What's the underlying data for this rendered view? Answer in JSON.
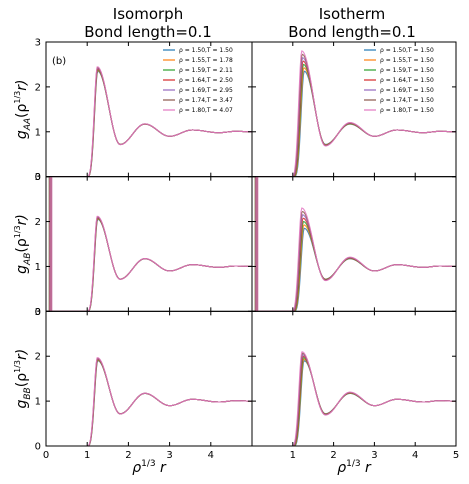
{
  "figure": {
    "column_titles": [
      {
        "line1": "Isomorph",
        "line2": "Bond length=0.1"
      },
      {
        "line1": "Isotherm",
        "line2": "Bond length=0.1"
      }
    ],
    "row_ylabels": [
      {
        "base": "g",
        "sub": "AA",
        "arg": "(ρ",
        "sup": "1/3",
        "tail": "r)"
      },
      {
        "base": "g",
        "sub": "AB",
        "arg": "(ρ",
        "sup": "1/3",
        "tail": "r)"
      },
      {
        "base": "g",
        "sub": "BB",
        "arg": "(ρ",
        "sup": "1/3",
        "tail": "r)"
      }
    ],
    "xlabel": {
      "base": "ρ",
      "sup": "1/3",
      "tail": " r"
    },
    "panel_tag": "(b)"
  },
  "chart_data": {
    "type": "line",
    "x_range": [
      0,
      5
    ],
    "y_range": [
      0,
      3
    ],
    "x_ticks_left": [
      "0",
      "1",
      "2",
      "3",
      "4"
    ],
    "x_ticks_right": [
      "1",
      "2",
      "3",
      "4",
      "5"
    ],
    "y_ticks": [
      "0",
      "1",
      "2",
      "3"
    ],
    "colors": [
      "#1f77b4",
      "#ff7f0e",
      "#2ca02c",
      "#d62728",
      "#9467bd",
      "#8c564b",
      "#e377c2"
    ],
    "legend_isomorph": [
      "ρ = 1.50,T = 1.50",
      "ρ = 1.55,T = 1.78",
      "ρ = 1.59,T = 2.11",
      "ρ = 1.64,T = 2.50",
      "ρ = 1.69,T = 2.95",
      "ρ = 1.74,T = 3.47",
      "ρ = 1.80,T = 4.07"
    ],
    "legend_isotherm": [
      "ρ = 1.50,T = 1.50",
      "ρ = 1.55,T = 1.50",
      "ρ = 1.59,T = 1.50",
      "ρ = 1.64,T = 1.50",
      "ρ = 1.69,T = 1.50",
      "ρ = 1.74,T = 1.50",
      "ρ = 1.80,T = 1.50"
    ],
    "series_shape": {
      "onset": 1.0,
      "peak1_x": 1.25,
      "min1_x": 1.8,
      "min1_y": 0.72,
      "peak2_x": 2.4,
      "peak2_y": 1.17,
      "min2_x": 3.0,
      "min2_y": 0.9,
      "peak3_x": 3.55,
      "peak3_y": 1.04,
      "tail_y": 1.0
    },
    "panels": [
      {
        "row": 0,
        "col": 0,
        "peak1": [
          2.35,
          2.45
        ],
        "spread": 0.01,
        "bond_spike": false
      },
      {
        "row": 0,
        "col": 1,
        "peak1": [
          2.35,
          2.8
        ],
        "spread": 0.06,
        "bond_spike": false
      },
      {
        "row": 1,
        "col": 0,
        "peak1": [
          2.05,
          2.12
        ],
        "spread": 0.01,
        "bond_spike": true,
        "spike_x": 0.1
      },
      {
        "row": 1,
        "col": 1,
        "peak1": [
          1.85,
          2.3
        ],
        "spread": 0.06,
        "bond_spike": true,
        "spike_x": 0.1
      },
      {
        "row": 2,
        "col": 0,
        "peak1": [
          1.9,
          1.97
        ],
        "spread": 0.01,
        "bond_spike": false
      },
      {
        "row": 2,
        "col": 1,
        "peak1": [
          1.9,
          2.1
        ],
        "spread": 0.05,
        "bond_spike": false
      }
    ]
  }
}
